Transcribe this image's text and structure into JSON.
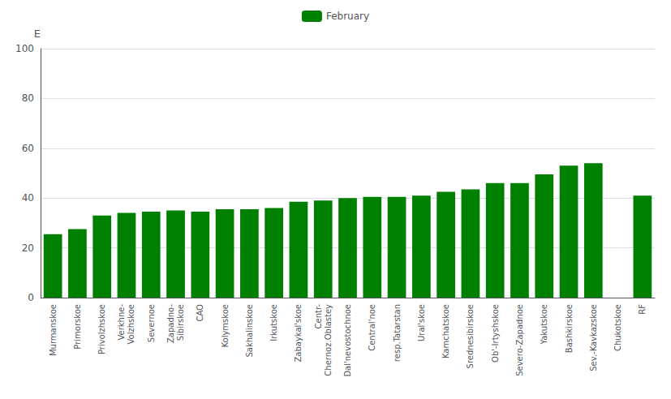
{
  "chart_data": {
    "type": "bar",
    "categories": [
      "Murmanskoe",
      "Primorskoe",
      "Privolzhskoe",
      "Verkhne-\nVolzhskoe",
      "Severnoe",
      "Zapadno-\nSibirskoe",
      "CAO",
      "Kolymskoe",
      "Sakhalinskoe",
      "Irkutskoe",
      "Zabaykal'skoe",
      "Centr-\nChernoz.Oblastey",
      "Dal'nevostochnoe",
      "Central'noe",
      "resp.Tatarstan",
      "Ural'skoe",
      "Kamchatskoe",
      "Srednesibirskoe",
      "Ob'-Irtyshskoe",
      "Severo-Zapadnoe",
      "Yakutskoe",
      "Bashkirskoe",
      "Sev.-Kavkazskoe",
      "Chukotskoe",
      "RF"
    ],
    "series": [
      {
        "name": "February",
        "color": "#008000",
        "values": [
          25.5,
          27.5,
          33.0,
          34.0,
          34.5,
          35.0,
          34.5,
          35.5,
          35.5,
          36.0,
          38.5,
          39.0,
          40.0,
          40.5,
          40.5,
          41.0,
          42.5,
          43.5,
          46.0,
          46.0,
          49.5,
          53.0,
          54.0,
          0.0,
          41.0
        ]
      }
    ],
    "ylabel": "E",
    "ylim": [
      0,
      100
    ],
    "yticks": [
      0,
      20,
      40,
      60,
      80,
      100
    ],
    "grid": true,
    "legend": "top"
  }
}
